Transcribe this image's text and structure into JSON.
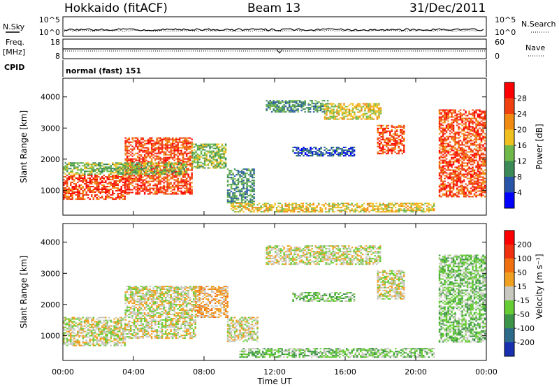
{
  "header": {
    "station": "Hokkaido (fitACF)",
    "beam": "Beam 13",
    "date": "31/Dec/2011"
  },
  "top_panel": {
    "nsky_label": "N.Sky",
    "nsearch_label": "N.Search",
    "left_ticks": [
      "10^5",
      "10^0"
    ],
    "right_ticks": [
      "10^5",
      "10^0"
    ],
    "freq_label_line1": "Freq.",
    "freq_label_line2": "[MHz]",
    "freq_ticks": [
      "18",
      "8"
    ],
    "nave_label": "Nave",
    "nave_ticks": [
      "60",
      "0"
    ],
    "cpid_label": "CPID",
    "cpid_text": "normal (fast) 151"
  },
  "chart_data": [
    {
      "type": "heatmap",
      "title": "",
      "xlabel": "Time UT",
      "ylabel": "Slant Range [km]",
      "x_ticks": [
        "00:00",
        "04:00",
        "08:00",
        "12:00",
        "16:00",
        "20:00",
        "00:00"
      ],
      "x_range_hours": [
        0,
        24
      ],
      "y_ticks": [
        "1000",
        "2000",
        "3000",
        "4000"
      ],
      "ylim": [
        200,
        4600
      ],
      "colorbar": {
        "label": "Power [dB]",
        "ticks": [
          "4",
          "8",
          "12",
          "16",
          "20",
          "24",
          "28"
        ],
        "colors": [
          "#0000ff",
          "#2855a8",
          "#3c8a58",
          "#6fb84a",
          "#f0c020",
          "#f08a10",
          "#f04010",
          "#ff0000"
        ]
      },
      "regions": [
        {
          "t0": 0.0,
          "t1": 3.5,
          "r0": 700,
          "r1": 1500,
          "level": 6
        },
        {
          "t0": 3.5,
          "t1": 7.3,
          "r0": 900,
          "r1": 2700,
          "level": 6
        },
        {
          "t0": 0.0,
          "t1": 7.0,
          "r0": 1500,
          "r1": 1900,
          "level": 3
        },
        {
          "t0": 7.3,
          "t1": 9.2,
          "r0": 1700,
          "r1": 2500,
          "level": 3
        },
        {
          "t0": 9.3,
          "t1": 10.8,
          "r0": 600,
          "r1": 1700,
          "level": 2
        },
        {
          "t0": 9.5,
          "t1": 21.0,
          "r0": 300,
          "r1": 600,
          "level": 4
        },
        {
          "t0": 11.5,
          "t1": 15.0,
          "r0": 3500,
          "r1": 3900,
          "level": 2
        },
        {
          "t0": 14.8,
          "t1": 18.0,
          "r0": 3300,
          "r1": 3800,
          "level": 4
        },
        {
          "t0": 13.0,
          "t1": 16.5,
          "r0": 2100,
          "r1": 2400,
          "level": 1
        },
        {
          "t0": 17.8,
          "t1": 19.3,
          "r0": 2200,
          "r1": 3100,
          "level": 6
        },
        {
          "t0": 21.3,
          "t1": 24.0,
          "r0": 800,
          "r1": 3600,
          "level": 6
        }
      ]
    },
    {
      "type": "heatmap",
      "title": "",
      "xlabel": "Time UT",
      "ylabel": "Slant Range [km]",
      "x_ticks": [
        "00:00",
        "04:00",
        "08:00",
        "12:00",
        "16:00",
        "20:00",
        "00:00"
      ],
      "x_range_hours": [
        0,
        24
      ],
      "y_ticks": [
        "1000",
        "2000",
        "3000",
        "4000"
      ],
      "ylim": [
        200,
        4600
      ],
      "colorbar": {
        "label": "Velocity [m s⁻¹]",
        "ticks": [
          "200",
          "100",
          "50",
          "15",
          "-15",
          "-50",
          "-100",
          "-200"
        ],
        "colors": [
          "#1830b0",
          "#2e6a8a",
          "#3c9448",
          "#66cc33",
          "#c8c8c0",
          "#f0a020",
          "#f07010",
          "#f03010",
          "#ff0000"
        ]
      },
      "regions": [
        {
          "t0": 0.0,
          "t1": 3.5,
          "r0": 700,
          "r1": 1600,
          "level": 4
        },
        {
          "t0": 3.5,
          "t1": 7.5,
          "r0": 900,
          "r1": 2600,
          "level": 4
        },
        {
          "t0": 7.5,
          "t1": 9.3,
          "r0": 1600,
          "r1": 2600,
          "level": 5
        },
        {
          "t0": 9.3,
          "t1": 11.0,
          "r0": 800,
          "r1": 1600,
          "level": 4
        },
        {
          "t0": 10.0,
          "t1": 21.0,
          "r0": 300,
          "r1": 600,
          "level": 3
        },
        {
          "t0": 11.5,
          "t1": 18.0,
          "r0": 3300,
          "r1": 3900,
          "level": 4
        },
        {
          "t0": 13.0,
          "t1": 16.5,
          "r0": 2100,
          "r1": 2400,
          "level": 3
        },
        {
          "t0": 17.8,
          "t1": 19.3,
          "r0": 2200,
          "r1": 3100,
          "level": 4
        },
        {
          "t0": 21.3,
          "t1": 24.0,
          "r0": 800,
          "r1": 3600,
          "level": 3
        }
      ]
    }
  ]
}
